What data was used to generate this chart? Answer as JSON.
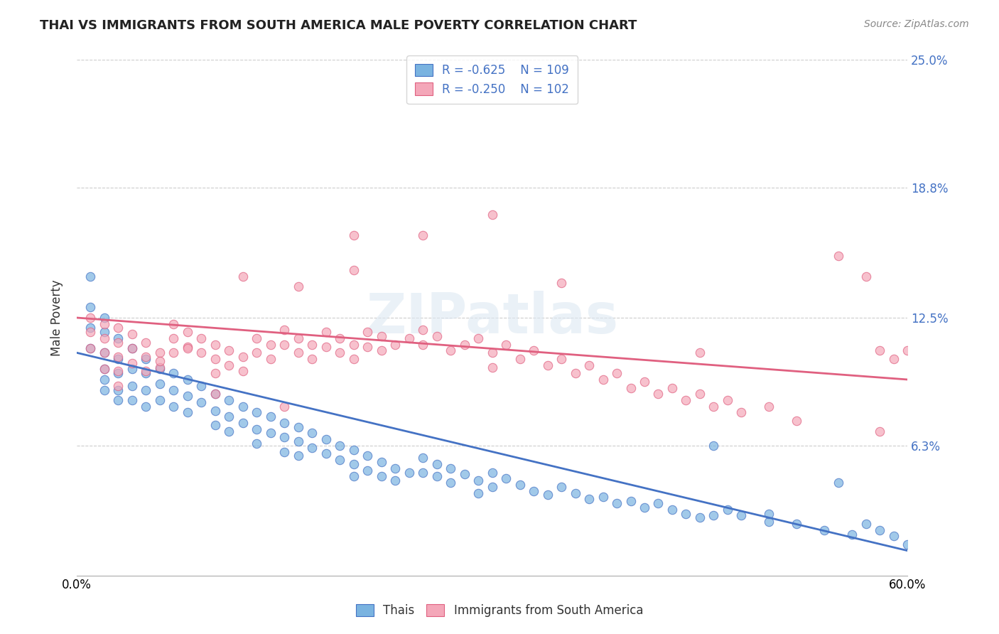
{
  "title": "THAI VS IMMIGRANTS FROM SOUTH AMERICA MALE POVERTY CORRELATION CHART",
  "source": "Source: ZipAtlas.com",
  "ylabel": "Male Poverty",
  "x_min": 0.0,
  "x_max": 0.6,
  "y_min": 0.0,
  "y_max": 0.25,
  "yticks": [
    0.0,
    0.063,
    0.125,
    0.188,
    0.25
  ],
  "ytick_labels": [
    "",
    "6.3%",
    "12.5%",
    "18.8%",
    "25.0%"
  ],
  "xticks": [
    0.0,
    0.15,
    0.3,
    0.45,
    0.6
  ],
  "xtick_labels": [
    "0.0%",
    "",
    "",
    "",
    "60.0%"
  ],
  "color_thai": "#7ab3e0",
  "color_sa": "#f4a7b9",
  "trendline_thai": "#4472c4",
  "trendline_sa": "#e06080",
  "legend_r_thai": "-0.625",
  "legend_n_thai": "109",
  "legend_r_sa": "-0.250",
  "legend_n_sa": "102",
  "watermark": "ZIPatlas",
  "label_thai": "Thais",
  "label_sa": "Immigrants from South America",
  "thai_trend_start": 0.108,
  "thai_trend_end": 0.012,
  "sa_trend_start": 0.125,
  "sa_trend_end": 0.095,
  "thai_x": [
    0.01,
    0.01,
    0.01,
    0.01,
    0.02,
    0.02,
    0.02,
    0.02,
    0.02,
    0.02,
    0.03,
    0.03,
    0.03,
    0.03,
    0.03,
    0.04,
    0.04,
    0.04,
    0.04,
    0.05,
    0.05,
    0.05,
    0.05,
    0.06,
    0.06,
    0.06,
    0.07,
    0.07,
    0.07,
    0.08,
    0.08,
    0.08,
    0.09,
    0.09,
    0.1,
    0.1,
    0.1,
    0.11,
    0.11,
    0.11,
    0.12,
    0.12,
    0.13,
    0.13,
    0.13,
    0.14,
    0.14,
    0.15,
    0.15,
    0.15,
    0.16,
    0.16,
    0.16,
    0.17,
    0.17,
    0.18,
    0.18,
    0.19,
    0.19,
    0.2,
    0.2,
    0.2,
    0.21,
    0.21,
    0.22,
    0.22,
    0.23,
    0.23,
    0.24,
    0.25,
    0.25,
    0.26,
    0.26,
    0.27,
    0.27,
    0.28,
    0.29,
    0.29,
    0.3,
    0.3,
    0.31,
    0.32,
    0.33,
    0.34,
    0.35,
    0.36,
    0.37,
    0.38,
    0.39,
    0.4,
    0.41,
    0.42,
    0.43,
    0.44,
    0.45,
    0.46,
    0.47,
    0.48,
    0.5,
    0.52,
    0.54,
    0.56,
    0.57,
    0.58,
    0.59,
    0.6,
    0.46,
    0.5,
    0.55
  ],
  "thai_y": [
    0.145,
    0.13,
    0.12,
    0.11,
    0.125,
    0.118,
    0.108,
    0.1,
    0.095,
    0.09,
    0.115,
    0.105,
    0.098,
    0.09,
    0.085,
    0.11,
    0.1,
    0.092,
    0.085,
    0.105,
    0.098,
    0.09,
    0.082,
    0.1,
    0.093,
    0.085,
    0.098,
    0.09,
    0.082,
    0.095,
    0.087,
    0.079,
    0.092,
    0.084,
    0.088,
    0.08,
    0.073,
    0.085,
    0.077,
    0.07,
    0.082,
    0.074,
    0.079,
    0.071,
    0.064,
    0.077,
    0.069,
    0.074,
    0.067,
    0.06,
    0.072,
    0.065,
    0.058,
    0.069,
    0.062,
    0.066,
    0.059,
    0.063,
    0.056,
    0.061,
    0.054,
    0.048,
    0.058,
    0.051,
    0.055,
    0.048,
    0.052,
    0.046,
    0.05,
    0.057,
    0.05,
    0.054,
    0.048,
    0.052,
    0.045,
    0.049,
    0.046,
    0.04,
    0.043,
    0.05,
    0.047,
    0.044,
    0.041,
    0.039,
    0.043,
    0.04,
    0.037,
    0.038,
    0.035,
    0.036,
    0.033,
    0.035,
    0.032,
    0.03,
    0.028,
    0.029,
    0.032,
    0.029,
    0.026,
    0.025,
    0.022,
    0.02,
    0.025,
    0.022,
    0.019,
    0.015,
    0.063,
    0.03,
    0.045
  ],
  "sa_x": [
    0.01,
    0.01,
    0.01,
    0.02,
    0.02,
    0.02,
    0.02,
    0.03,
    0.03,
    0.03,
    0.03,
    0.03,
    0.04,
    0.04,
    0.04,
    0.05,
    0.05,
    0.05,
    0.06,
    0.06,
    0.07,
    0.07,
    0.07,
    0.08,
    0.08,
    0.09,
    0.09,
    0.1,
    0.1,
    0.1,
    0.11,
    0.11,
    0.12,
    0.12,
    0.13,
    0.13,
    0.14,
    0.14,
    0.15,
    0.15,
    0.16,
    0.16,
    0.17,
    0.17,
    0.18,
    0.18,
    0.19,
    0.19,
    0.2,
    0.2,
    0.21,
    0.21,
    0.22,
    0.22,
    0.23,
    0.24,
    0.25,
    0.25,
    0.26,
    0.27,
    0.28,
    0.29,
    0.3,
    0.3,
    0.31,
    0.32,
    0.33,
    0.34,
    0.35,
    0.36,
    0.37,
    0.38,
    0.39,
    0.4,
    0.41,
    0.42,
    0.43,
    0.44,
    0.45,
    0.46,
    0.47,
    0.48,
    0.5,
    0.52,
    0.1,
    0.15,
    0.2,
    0.25,
    0.3,
    0.55,
    0.57,
    0.58,
    0.06,
    0.08,
    0.12,
    0.16,
    0.2,
    0.35,
    0.45,
    0.58,
    0.6,
    0.59
  ],
  "sa_y": [
    0.125,
    0.118,
    0.11,
    0.122,
    0.115,
    0.108,
    0.1,
    0.12,
    0.113,
    0.106,
    0.099,
    0.092,
    0.117,
    0.11,
    0.103,
    0.113,
    0.106,
    0.099,
    0.108,
    0.101,
    0.122,
    0.115,
    0.108,
    0.118,
    0.111,
    0.115,
    0.108,
    0.112,
    0.105,
    0.098,
    0.109,
    0.102,
    0.106,
    0.099,
    0.115,
    0.108,
    0.112,
    0.105,
    0.119,
    0.112,
    0.115,
    0.108,
    0.112,
    0.105,
    0.118,
    0.111,
    0.115,
    0.108,
    0.112,
    0.105,
    0.118,
    0.111,
    0.116,
    0.109,
    0.112,
    0.115,
    0.119,
    0.112,
    0.116,
    0.109,
    0.112,
    0.115,
    0.108,
    0.101,
    0.112,
    0.105,
    0.109,
    0.102,
    0.105,
    0.098,
    0.102,
    0.095,
    0.098,
    0.091,
    0.094,
    0.088,
    0.091,
    0.085,
    0.088,
    0.082,
    0.085,
    0.079,
    0.082,
    0.075,
    0.088,
    0.082,
    0.165,
    0.165,
    0.175,
    0.155,
    0.145,
    0.109,
    0.104,
    0.11,
    0.145,
    0.14,
    0.148,
    0.142,
    0.108,
    0.07,
    0.109,
    0.105
  ]
}
